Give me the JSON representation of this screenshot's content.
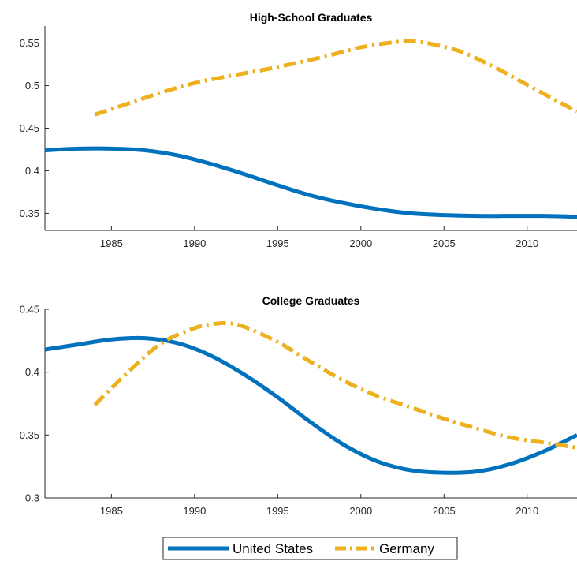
{
  "colors": {
    "us": "#0072BD",
    "germany": "#EDB120",
    "axis": "#262626"
  },
  "legend": {
    "location": "bottom-center",
    "entries": [
      "United States",
      "Germany"
    ]
  },
  "chart_data": [
    {
      "type": "line",
      "title": "High-School Graduates",
      "xlabel": "",
      "ylabel": "",
      "xlim": [
        1981,
        2013
      ],
      "ylim": [
        0.33,
        0.57
      ],
      "xticks": [
        1985,
        1990,
        1995,
        2000,
        2005,
        2010
      ],
      "yticks": [
        0.35,
        0.4,
        0.45,
        0.5,
        0.55
      ],
      "ytick_labels": [
        "0.35",
        "0.4",
        "0.45",
        "0.5",
        "0.55"
      ],
      "series": [
        {
          "name": "United States",
          "style": "solid",
          "x": [
            1981,
            1983,
            1985,
            1987,
            1989,
            1991,
            1993,
            1995,
            1997,
            1999,
            2001,
            2003,
            2005,
            2007,
            2009,
            2011,
            2013
          ],
          "y": [
            0.424,
            0.426,
            0.426,
            0.424,
            0.418,
            0.408,
            0.396,
            0.383,
            0.371,
            0.362,
            0.355,
            0.35,
            0.348,
            0.347,
            0.347,
            0.347,
            0.346
          ]
        },
        {
          "name": "Germany",
          "style": "dash-dot",
          "x": [
            1984,
            1986,
            1988,
            1990,
            1992,
            1994,
            1996,
            1998,
            2000,
            2002,
            2003,
            2004,
            2006,
            2008,
            2010,
            2012,
            2013
          ],
          "y": [
            0.466,
            0.479,
            0.492,
            0.503,
            0.511,
            0.518,
            0.526,
            0.535,
            0.545,
            0.551,
            0.552,
            0.55,
            0.54,
            0.522,
            0.501,
            0.48,
            0.47
          ]
        }
      ]
    },
    {
      "type": "line",
      "title": "College Graduates",
      "xlabel": "",
      "ylabel": "",
      "xlim": [
        1981,
        2013
      ],
      "ylim": [
        0.3,
        0.45
      ],
      "xticks": [
        1985,
        1990,
        1995,
        2000,
        2005,
        2010
      ],
      "yticks": [
        0.3,
        0.35,
        0.4,
        0.45
      ],
      "ytick_labels": [
        "0.3",
        "0.35",
        "0.4",
        "0.45"
      ],
      "series": [
        {
          "name": "United States",
          "style": "solid",
          "x": [
            1981,
            1983,
            1985,
            1987,
            1989,
            1991,
            1993,
            1995,
            1997,
            1999,
            2001,
            2003,
            2005,
            2007,
            2009,
            2011,
            2013
          ],
          "y": [
            0.418,
            0.422,
            0.426,
            0.427,
            0.423,
            0.413,
            0.398,
            0.38,
            0.36,
            0.342,
            0.329,
            0.322,
            0.32,
            0.321,
            0.327,
            0.337,
            0.35
          ]
        },
        {
          "name": "Germany",
          "style": "dash-dot",
          "x": [
            1984,
            1986,
            1988,
            1990,
            1991,
            1992,
            1993,
            1995,
            1997,
            1999,
            2001,
            2003,
            2005,
            2007,
            2009,
            2011,
            2013
          ],
          "y": [
            0.374,
            0.4,
            0.423,
            0.435,
            0.438,
            0.439,
            0.436,
            0.424,
            0.408,
            0.393,
            0.381,
            0.372,
            0.363,
            0.355,
            0.348,
            0.344,
            0.34
          ]
        }
      ]
    }
  ]
}
